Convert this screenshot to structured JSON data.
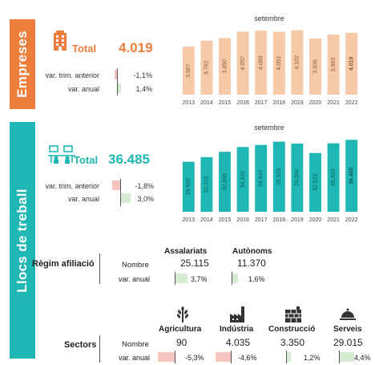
{
  "empreses": {
    "section_label": "Empreses",
    "total_label": "Total",
    "total_value": "4.019",
    "var_trim_label": "var. trim. anterior",
    "var_trim_value": "-1,1%",
    "var_trim_pct": -1.1,
    "var_anual_label": "var. anual",
    "var_anual_value": "1,4%",
    "var_anual_pct": 1.4,
    "accent": "#ec7d3a",
    "icon": "building-icon"
  },
  "llocs": {
    "section_label": "Llocs de treball",
    "total_label": "Total",
    "total_value": "36.485",
    "var_trim_label": "var. trim. anterior",
    "var_trim_value": "-1,8%",
    "var_trim_pct": -1.8,
    "var_anual_label": "var. anual",
    "var_anual_value": "3,0%",
    "var_anual_pct": 3.0,
    "accent": "#1fb7b3",
    "icon": "workers-icon"
  },
  "regim": {
    "label": "Règim afiliació",
    "col1": "Assalariats",
    "col2": "Autònoms",
    "row1_label": "Nombre",
    "row2_label": "var. anual",
    "assalariats_nombre": "25.115",
    "autonoms_nombre": "11.370",
    "assalariats_var": "3,7%",
    "assalariats_var_pct": 3.7,
    "autonoms_var": "1,6%",
    "autonoms_var_pct": 1.6
  },
  "sectors": {
    "label": "Sectors",
    "row1_label": "Nombre",
    "row2_label": "var. anual",
    "items": [
      {
        "name": "Agricultura",
        "nombre": "90",
        "var": "-5,3%",
        "pct": -5.3,
        "icon": "wheat-icon"
      },
      {
        "name": "Indústria",
        "nombre": "4.035",
        "var": "-4,6%",
        "pct": -4.6,
        "icon": "factory-icon"
      },
      {
        "name": "Construcció",
        "nombre": "3.350",
        "var": "1,2%",
        "pct": 1.2,
        "icon": "brick-wall-icon"
      },
      {
        "name": "Serveis",
        "nombre": "29.015",
        "var": "4,4%",
        "pct": 4.4,
        "icon": "cloche-icon"
      }
    ]
  },
  "chart_data": [
    {
      "type": "bar",
      "title": "setembre",
      "categories": [
        "2013",
        "2014",
        "2015",
        "2016",
        "2017",
        "2018",
        "2019",
        "2020",
        "2021",
        "2022"
      ],
      "values": [
        3567,
        3762,
        3850,
        4057,
        4089,
        4053,
        4102,
        3836,
        3963,
        4019
      ],
      "labels": [
        "3.567",
        "3.762",
        "3.850",
        "4.057",
        "4.089",
        "4.053",
        "4.102",
        "3.836",
        "3.963",
        "4.019"
      ],
      "color": "#f6c9a8",
      "highlight_last": true
    },
    {
      "type": "bar",
      "title": "setembre",
      "categories": [
        "2013",
        "2014",
        "2015",
        "2016",
        "2017",
        "2018",
        "2019",
        "2020",
        "2021",
        "2022"
      ],
      "values": [
        29930,
        31315,
        32898,
        34331,
        34940,
        35925,
        35366,
        32523,
        35420,
        36485
      ],
      "labels": [
        "29.930",
        "31.315",
        "32.898",
        "34.331",
        "34.940",
        "35.925",
        "35.366",
        "32.523",
        "35.420",
        "36.485"
      ],
      "color": "#1fb7b3",
      "highlight_last": true
    }
  ],
  "colors": {
    "negative_bar": "#f7c5c0",
    "positive_bar": "#d6ecd2"
  }
}
